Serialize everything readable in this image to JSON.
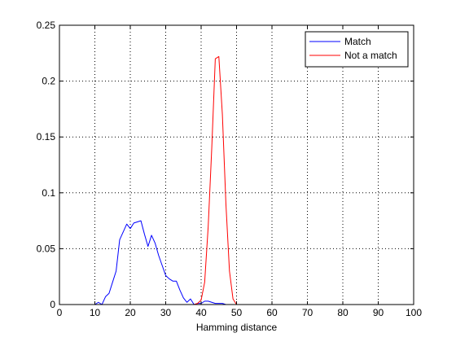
{
  "chart_data": {
    "type": "line",
    "title": "",
    "xlabel": "Hamming distance",
    "ylabel": "",
    "xlim": [
      0,
      100
    ],
    "ylim": [
      0,
      0.25
    ],
    "xticks": [
      0,
      10,
      20,
      30,
      40,
      50,
      60,
      70,
      80,
      90,
      100
    ],
    "xtick_labels": [
      "0",
      "10",
      "20",
      "30",
      "40",
      "50",
      "60",
      "70",
      "80",
      "90",
      "100"
    ],
    "yticks": [
      0,
      0.05,
      0.1,
      0.15,
      0.2,
      0.25
    ],
    "ytick_labels": [
      "0",
      "0.05",
      "0.1",
      "0.15",
      "0.2",
      "0.25"
    ],
    "grid": true,
    "legend": "top-right",
    "series": [
      {
        "name": "Match",
        "color": "#0000ff",
        "x": [
          0,
          10,
          11,
          12,
          13,
          14,
          15,
          16,
          17,
          18,
          19,
          20,
          21,
          22,
          23,
          24,
          25,
          26,
          27,
          28,
          29,
          30,
          31,
          32,
          33,
          34,
          35,
          36,
          37,
          38,
          39,
          40,
          41,
          42,
          43,
          44,
          45,
          46,
          47,
          48,
          49,
          50,
          100
        ],
        "y": [
          0,
          0,
          0.002,
          0,
          0.007,
          0.01,
          0.02,
          0.03,
          0.058,
          0.065,
          0.072,
          0.068,
          0.073,
          0.074,
          0.075,
          0.063,
          0.052,
          0.062,
          0.055,
          0.044,
          0.035,
          0.026,
          0.023,
          0.021,
          0.021,
          0.013,
          0.006,
          0.002,
          0.005,
          0,
          0.001,
          0.001,
          0.003,
          0.003,
          0.002,
          0.001,
          0.001,
          0.001,
          0,
          0,
          0,
          0,
          0
        ]
      },
      {
        "name": "Not a match",
        "color": "#ff0000",
        "x": [
          0,
          38,
          39,
          40,
          41,
          42,
          43,
          44,
          45,
          46,
          47,
          48,
          49,
          50,
          100
        ],
        "y": [
          0,
          0,
          0.001,
          0.004,
          0.02,
          0.07,
          0.14,
          0.22,
          0.222,
          0.17,
          0.09,
          0.03,
          0.005,
          0,
          0
        ]
      }
    ]
  }
}
